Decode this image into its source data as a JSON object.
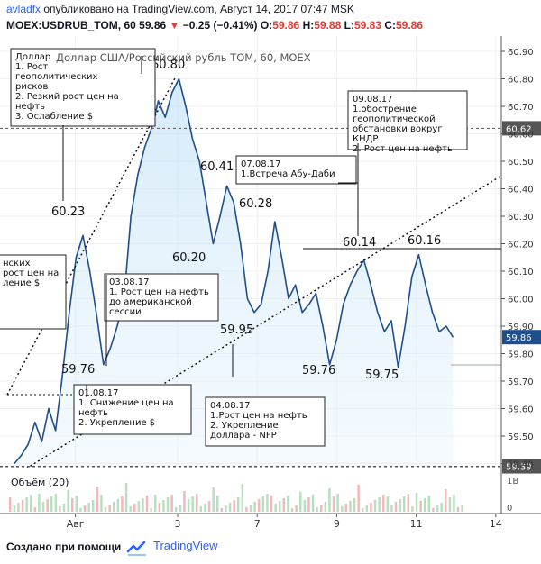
{
  "header": {
    "author": "avladfx",
    "published": "опубликовано на TradingView.com, Август 14, 2017 07:47 MSK",
    "symbol": "MOEX:USDRUB_TOM, 60",
    "last": "59.86",
    "change": "−0.25 (−0.41%)",
    "o_label": "O:",
    "o_val": "59.86",
    "h_label": "H:",
    "h_val": "59.88",
    "l_label": "L:",
    "l_val": "59.83",
    "c_label": "C:",
    "c_val": "59.86",
    "down_color": "#e53935",
    "up_color": "#2962ff"
  },
  "footer": {
    "created_with": "Создано при помощи",
    "brand": "TradingView",
    "brand_color": "#2962ff"
  },
  "chart_data": {
    "type": "area",
    "title": "Доллар США/Российский рубль TOM, 60, MOEX",
    "ylim": [
      59.39,
      60.93
    ],
    "y_ticks": [
      "60.90",
      "60.80",
      "60.70",
      "60.60",
      "60.50",
      "60.40",
      "60.30",
      "60.20",
      "60.10",
      "60.00",
      "59.90",
      "59.80",
      "59.70",
      "59.60",
      "59.50",
      "59.40"
    ],
    "x_ticks": [
      {
        "label": "Авг",
        "t": 12
      },
      {
        "label": "3",
        "t": 30
      },
      {
        "label": "7",
        "t": 44
      },
      {
        "label": "9",
        "t": 58
      },
      {
        "label": "11",
        "t": 72
      },
      {
        "label": "14",
        "t": 86
      }
    ],
    "series": [
      {
        "values": [
          59.4,
          59.43,
          59.47,
          59.55,
          59.48,
          59.6,
          59.52,
          59.72,
          59.95,
          60.15,
          60.23,
          60.1,
          59.94,
          59.76,
          59.82,
          59.9,
          60.0,
          60.3,
          60.45,
          60.55,
          60.62,
          60.72,
          60.66,
          60.75,
          60.8,
          60.7,
          60.58,
          60.5,
          60.35,
          60.2,
          60.3,
          60.41,
          60.35,
          60.2,
          60.0,
          59.95,
          59.98,
          60.1,
          60.28,
          60.15,
          60.0,
          60.05,
          59.95,
          59.98,
          60.02,
          59.9,
          59.76,
          59.85,
          59.98,
          60.05,
          60.1,
          60.14,
          60.05,
          59.95,
          59.88,
          59.92,
          59.75,
          59.9,
          60.08,
          60.16,
          60.05,
          59.95,
          59.88,
          59.9,
          59.86
        ]
      }
    ],
    "price_lines": [
      {
        "value": 60.62,
        "label": "60.62",
        "color": "#555555"
      },
      {
        "value": 59.39,
        "label": "59.39",
        "color": "#555555"
      }
    ],
    "last_price": {
      "value": 59.86,
      "label": "59.86",
      "color": "#1e4e8c"
    },
    "price_labels": [
      {
        "text": "60.80",
        "x": 24,
        "y": 60.8
      },
      {
        "text": "60.23",
        "x": 10,
        "y": 60.23
      },
      {
        "text": "60.41",
        "x": 31,
        "y": 60.41
      },
      {
        "text": "60.28",
        "x": 38,
        "y": 60.28
      },
      {
        "text": "60.20",
        "x": 29,
        "y": 60.2
      },
      {
        "text": "60.14",
        "x": 51,
        "y": 60.14
      },
      {
        "text": "60.16",
        "x": 59,
        "y": 60.16
      },
      {
        "text": "59.95",
        "x": 35,
        "y": 59.95
      },
      {
        "text": "59.76",
        "x": 13,
        "y": 59.76
      },
      {
        "text": "59.76",
        "x": 46,
        "y": 59.76
      },
      {
        "text": "59.75",
        "x": 56,
        "y": 59.75
      }
    ],
    "annotations": [
      {
        "lines": [
          "Доллар",
          "1. Рост",
          "геополитических",
          "рисков",
          "2. Резкий рост цен на",
          "нефть",
          "3. Ослабление $"
        ]
      },
      {
        "lines": [
          "09.08.17",
          "1.обострение",
          "геополитической",
          "обстановки вокруг",
          "КНДР",
          "2. Рост цен на нефть."
        ]
      },
      {
        "lines": [
          "07.08.17",
          "1.Встреча Абу-Даби"
        ]
      },
      {
        "lines": [
          "нских",
          "рост цен на",
          "ление $"
        ]
      },
      {
        "lines": [
          "03.08.17",
          "1. Рост цен на нефть",
          "до американской",
          "сессии"
        ]
      },
      {
        "lines": [
          "01.08.17",
          "1. Снижение цен на",
          "нефть",
          "2. Укрепление $"
        ]
      },
      {
        "lines": [
          "04.08.17",
          "1.Рост цен на нефть",
          "2. Укрепление",
          "доллара - NFP"
        ]
      }
    ],
    "volume": {
      "label": "Объём (20)",
      "axis_labels": [
        "1B",
        "0"
      ]
    }
  }
}
